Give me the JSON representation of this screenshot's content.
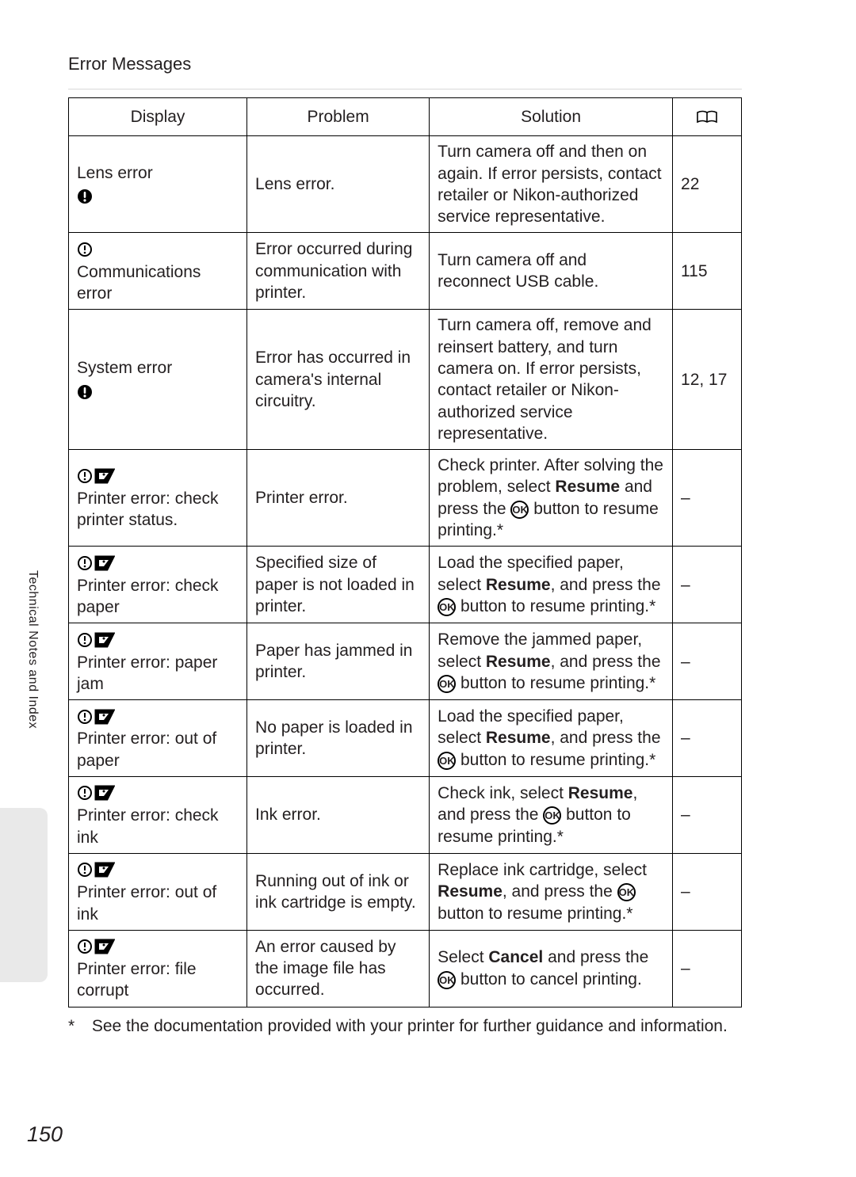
{
  "header": {
    "title": "Error Messages"
  },
  "sidebar": {
    "label": "Technical Notes and Index"
  },
  "pageNumber": "150",
  "footnote": {
    "marker": "*",
    "text": "See the documentation provided with your printer for further guidance and information."
  },
  "table": {
    "headers": {
      "display": "Display",
      "problem": "Problem",
      "solution": "Solution"
    },
    "rows": [
      {
        "displayIcon": "excl",
        "displayText": "Lens error",
        "problem": "Lens error.",
        "solution": "Turn camera off and then on again. If error persists, contact retailer or Nikon-authorized service representative.",
        "ref": "22"
      },
      {
        "displayIcon": "warn",
        "displayText": "Communications error",
        "problem": "Error occurred during communication with printer.",
        "solution": "Turn camera off and reconnect USB cable.",
        "ref": "115"
      },
      {
        "displayIcon": "excl",
        "displayText": "System error",
        "problem": "Error has occurred in camera's internal circuitry.",
        "solution": "Turn camera off, remove and reinsert battery, and turn camera on. If error persists, contact retailer or Nikon-authorized service representative.",
        "ref": "12, 17"
      },
      {
        "displayIcon": "warnpict",
        "displayText": "Printer error: check printer status.",
        "problem": "Printer error.",
        "solutionParts": [
          "Check printer. After solving the problem, select ",
          [
            "bold",
            "Resume"
          ],
          " and press the ",
          [
            "ok"
          ],
          " button to resume printing.*"
        ],
        "ref": "–"
      },
      {
        "displayIcon": "warnpict",
        "displayText": "Printer error: check paper",
        "problem": "Specified size of paper is not loaded in printer.",
        "solutionParts": [
          "Load the specified paper, select ",
          [
            "bold",
            "Resume"
          ],
          ", and press the ",
          [
            "ok"
          ],
          " button to resume printing.*"
        ],
        "ref": "–"
      },
      {
        "displayIcon": "warnpict",
        "displayText": "Printer error: paper jam",
        "problem": "Paper has jammed in printer.",
        "solutionParts": [
          "Remove the jammed paper, select ",
          [
            "bold",
            "Resume"
          ],
          ", and press the ",
          [
            "ok"
          ],
          " button to resume printing.*"
        ],
        "ref": "–"
      },
      {
        "displayIcon": "warnpict",
        "displayText": "Printer error: out of paper",
        "problem": "No paper is loaded in printer.",
        "solutionParts": [
          "Load the specified paper, select ",
          [
            "bold",
            "Resume"
          ],
          ", and press the ",
          [
            "ok"
          ],
          " button to resume printing.*"
        ],
        "ref": "–"
      },
      {
        "displayIcon": "warnpict",
        "displayText": "Printer error: check ink",
        "problem": "Ink error.",
        "solutionParts": [
          "Check ink, select ",
          [
            "bold",
            "Resume"
          ],
          ", and press the ",
          [
            "ok"
          ],
          " button to resume printing.*"
        ],
        "ref": "–"
      },
      {
        "displayIcon": "warnpict",
        "displayText": "Printer error: out of ink",
        "problem": "Running out of ink or ink cartridge is empty.",
        "solutionParts": [
          "Replace ink cartridge, select ",
          [
            "bold",
            "Resume"
          ],
          ", and press the ",
          [
            "ok"
          ],
          " button to resume printing.*"
        ],
        "ref": "–"
      },
      {
        "displayIcon": "warnpict",
        "displayText": "Printer error: file corrupt",
        "problem": "An error caused by the image file has occurred.",
        "solutionParts": [
          "Select ",
          [
            "bold",
            "Cancel"
          ],
          " and press the ",
          [
            "ok"
          ],
          " button to cancel printing."
        ],
        "ref": "–"
      }
    ]
  }
}
